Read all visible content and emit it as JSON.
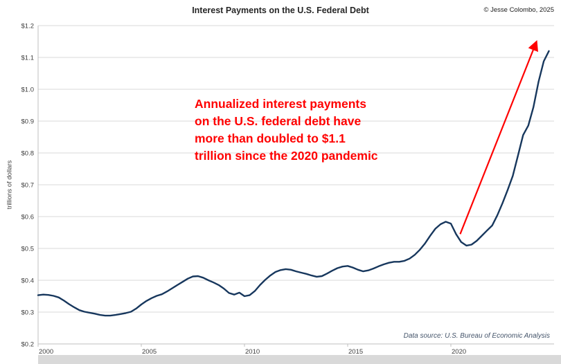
{
  "header": {
    "title": "Interest Payments on the U.S. Federal Debt",
    "copyright": "© Jesse Colombo, 2025"
  },
  "annotation": {
    "lines": [
      "Annualized interest payments",
      "on the U.S. federal debt have",
      "more than doubled to $1.1",
      "trillion since the 2020 pandemic"
    ],
    "color": "#ff0000"
  },
  "footer": {
    "source": "Data source: U.S. Bureau of Economic Analysis"
  },
  "chart_data": {
    "type": "line",
    "title": "Interest Payments on the U.S. Federal Debt",
    "xlabel": "",
    "ylabel": "trillions of dollars",
    "ylim": [
      0.2,
      1.2
    ],
    "xlim": [
      2000,
      2025
    ],
    "grid": true,
    "grid_color": "#d9d9d9",
    "axis_color": "#bfbfbf",
    "line_color": "#17375d",
    "legend": "none",
    "y_ticks": [
      {
        "v": 0.2,
        "label": "$0.2"
      },
      {
        "v": 0.3,
        "label": "$0.3"
      },
      {
        "v": 0.4,
        "label": "$0.4"
      },
      {
        "v": 0.5,
        "label": "$0.5"
      },
      {
        "v": 0.6,
        "label": "$0.6"
      },
      {
        "v": 0.7,
        "label": "$0.7"
      },
      {
        "v": 0.8,
        "label": "$0.8"
      },
      {
        "v": 0.9,
        "label": "$0.9"
      },
      {
        "v": 1.0,
        "label": "$1.0"
      },
      {
        "v": 1.1,
        "label": "$1.1"
      },
      {
        "v": 1.2,
        "label": "$1.2"
      }
    ],
    "x_ticks": [
      {
        "v": 2000,
        "label": "2000"
      },
      {
        "v": 2005,
        "label": "2005"
      },
      {
        "v": 2010,
        "label": "2010"
      },
      {
        "v": 2015,
        "label": "2015"
      },
      {
        "v": 2020,
        "label": "2020"
      }
    ],
    "series": [
      {
        "name": "Annualized interest payments on the U.S. federal debt (trillions of dollars)",
        "x": [
          2000,
          2000.25,
          2000.5,
          2000.75,
          2001,
          2001.25,
          2001.5,
          2001.75,
          2002,
          2002.25,
          2002.5,
          2002.75,
          2003,
          2003.25,
          2003.5,
          2003.75,
          2004,
          2004.25,
          2004.5,
          2004.75,
          2005,
          2005.25,
          2005.5,
          2005.75,
          2006,
          2006.25,
          2006.5,
          2006.75,
          2007,
          2007.25,
          2007.5,
          2007.75,
          2008,
          2008.25,
          2008.5,
          2008.75,
          2009,
          2009.25,
          2009.5,
          2009.75,
          2010,
          2010.25,
          2010.5,
          2010.75,
          2011,
          2011.25,
          2011.5,
          2011.75,
          2012,
          2012.25,
          2012.5,
          2012.75,
          2013,
          2013.25,
          2013.5,
          2013.75,
          2014,
          2014.25,
          2014.5,
          2014.75,
          2015,
          2015.25,
          2015.5,
          2015.75,
          2016,
          2016.25,
          2016.5,
          2016.75,
          2017,
          2017.25,
          2017.5,
          2017.75,
          2018,
          2018.25,
          2018.5,
          2018.75,
          2019,
          2019.25,
          2019.5,
          2019.75,
          2020,
          2020.25,
          2020.5,
          2020.75,
          2021,
          2021.25,
          2021.5,
          2021.75,
          2022,
          2022.25,
          2022.5,
          2022.75,
          2023,
          2023.25,
          2023.5,
          2023.75,
          2024,
          2024.25,
          2024.5,
          2024.75
        ],
        "values": [
          0.353,
          0.355,
          0.354,
          0.351,
          0.346,
          0.336,
          0.325,
          0.315,
          0.306,
          0.301,
          0.298,
          0.295,
          0.291,
          0.289,
          0.289,
          0.291,
          0.294,
          0.297,
          0.301,
          0.311,
          0.324,
          0.335,
          0.344,
          0.351,
          0.356,
          0.365,
          0.375,
          0.385,
          0.395,
          0.405,
          0.412,
          0.413,
          0.408,
          0.4,
          0.393,
          0.385,
          0.374,
          0.36,
          0.355,
          0.361,
          0.35,
          0.353,
          0.366,
          0.385,
          0.401,
          0.415,
          0.426,
          0.432,
          0.435,
          0.433,
          0.428,
          0.424,
          0.42,
          0.415,
          0.411,
          0.413,
          0.421,
          0.43,
          0.438,
          0.443,
          0.445,
          0.44,
          0.433,
          0.428,
          0.431,
          0.437,
          0.444,
          0.45,
          0.455,
          0.458,
          0.458,
          0.461,
          0.468,
          0.48,
          0.496,
          0.516,
          0.54,
          0.562,
          0.576,
          0.584,
          0.578,
          0.545,
          0.52,
          0.509,
          0.512,
          0.524,
          0.54,
          0.556,
          0.572,
          0.604,
          0.642,
          0.684,
          0.728,
          0.792,
          0.856,
          0.886,
          0.944,
          1.024,
          1.088,
          1.12
        ]
      }
    ],
    "arrow": {
      "from": [
        2020.45,
        0.545
      ],
      "to": [
        2024.15,
        1.15
      ],
      "color": "#ff0000"
    }
  }
}
